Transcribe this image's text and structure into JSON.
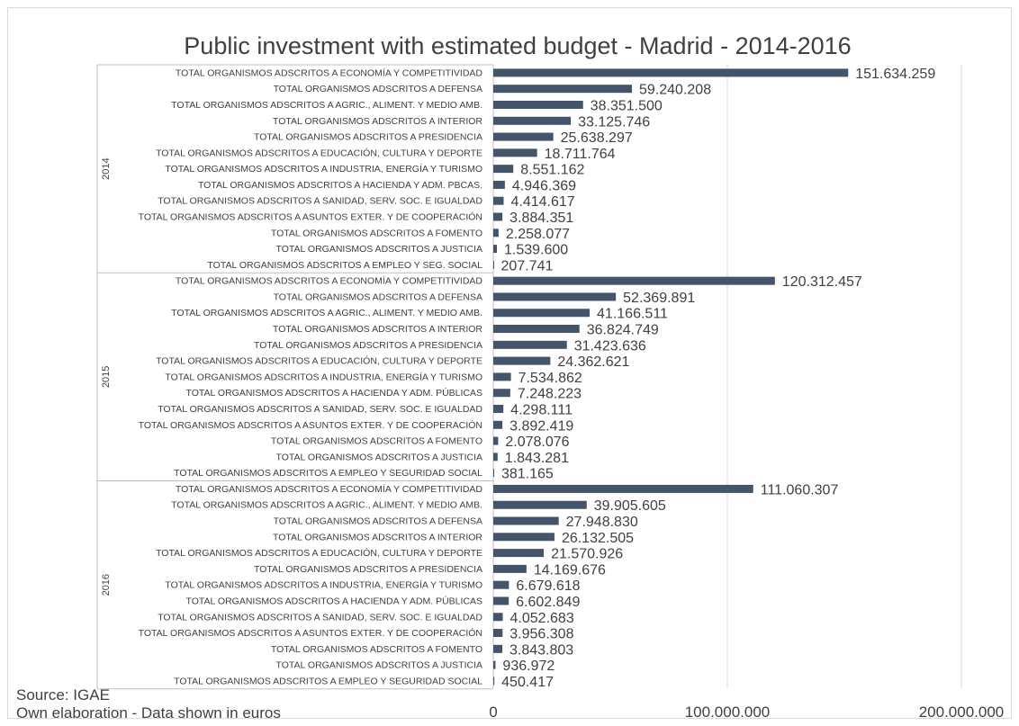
{
  "notes": {
    "source": "Source: IGAE",
    "elaboration": "Own elaboration - Data shown in euros"
  },
  "chart_data": {
    "type": "bar",
    "orientation": "horizontal",
    "title": "Public investment with estimated budget - Madrid - 2014-2016",
    "xlim": [
      0,
      200000000
    ],
    "x_ticks": [
      "0",
      "100.000.000",
      "200.000.000"
    ],
    "bar_color": "#44546a",
    "gridlines": true,
    "groups": [
      {
        "label": "2014",
        "items": [
          {
            "label": "TOTAL ORGANISMOS ADSCRITOS A ECONOMÍA Y COMPETITIVIDAD",
            "value": 151634259,
            "value_label": "151.634.259"
          },
          {
            "label": "TOTAL ORGANISMOS ADSCRITOS A DEFENSA",
            "value": 59240208,
            "value_label": "59.240.208"
          },
          {
            "label": "TOTAL ORGANISMOS ADSCRITOS A AGRIC., ALIMENT. Y MEDIO AMB.",
            "value": 38351500,
            "value_label": "38.351.500"
          },
          {
            "label": "TOTAL ORGANISMOS ADSCRITOS A INTERIOR",
            "value": 33125746,
            "value_label": "33.125.746"
          },
          {
            "label": "TOTAL ORGANISMOS ADSCRITOS A PRESIDENCIA",
            "value": 25638297,
            "value_label": "25.638.297"
          },
          {
            "label": "TOTAL ORGANISMOS ADSCRITOS A EDUCACIÓN, CULTURA Y DEPORTE",
            "value": 18711764,
            "value_label": "18.711.764"
          },
          {
            "label": "TOTAL ORGANISMOS ADSCRITOS A INDUSTRIA, ENERGÍA Y TURISMO",
            "value": 8551162,
            "value_label": "8.551.162"
          },
          {
            "label": "TOTAL ORGANISMOS ADSCRITOS A HACIENDA Y ADM. PBCAS.",
            "value": 4946369,
            "value_label": "4.946.369"
          },
          {
            "label": "TOTAL ORGANISMOS ADSCRITOS A SANIDAD, SERV. SOC. E IGUALDAD",
            "value": 4414617,
            "value_label": "4.414.617"
          },
          {
            "label": "TOTAL ORGANISMOS ADSCRITOS A ASUNTOS EXTER. Y DE COOPERACIÓN",
            "value": 3884351,
            "value_label": "3.884.351"
          },
          {
            "label": "TOTAL ORGANISMOS ADSCRITOS A FOMENTO",
            "value": 2258077,
            "value_label": "2.258.077"
          },
          {
            "label": "TOTAL ORGANISMOS ADSCRITOS A JUSTICIA",
            "value": 1539600,
            "value_label": "1.539.600"
          },
          {
            "label": "TOTAL ORGANISMOS ADSCRITOS A EMPLEO Y SEG. SOCIAL",
            "value": 207741,
            "value_label": "207.741"
          }
        ]
      },
      {
        "label": "2015",
        "items": [
          {
            "label": "TOTAL ORGANISMOS ADSCRITOS A ECONOMÍA Y COMPETITIVIDAD",
            "value": 120312457,
            "value_label": "120.312.457"
          },
          {
            "label": "TOTAL ORGANISMOS ADSCRITOS A DEFENSA",
            "value": 52369891,
            "value_label": "52.369.891"
          },
          {
            "label": "TOTAL ORGANISMOS ADSCRITOS A AGRIC., ALIMENT. Y MEDIO AMB.",
            "value": 41166511,
            "value_label": "41.166.511"
          },
          {
            "label": "TOTAL ORGANISMOS ADSCRITOS A INTERIOR",
            "value": 36824749,
            "value_label": "36.824.749"
          },
          {
            "label": "TOTAL ORGANISMOS ADSCRITOS A PRESIDENCIA",
            "value": 31423636,
            "value_label": "31.423.636"
          },
          {
            "label": "TOTAL ORGANISMOS ADSCRITOS A EDUCACIÓN, CULTURA Y DEPORTE",
            "value": 24362621,
            "value_label": "24.362.621"
          },
          {
            "label": "TOTAL ORGANISMOS ADSCRITOS A INDUSTRIA, ENERGÍA Y TURISMO",
            "value": 7534862,
            "value_label": "7.534.862"
          },
          {
            "label": "TOTAL ORGANISMOS ADSCRITOS A HACIENDA Y ADM. PÚBLICAS",
            "value": 7248223,
            "value_label": "7.248.223"
          },
          {
            "label": "TOTAL ORGANISMOS ADSCRITOS A SANIDAD, SERV. SOC. E IGUALDAD",
            "value": 4298111,
            "value_label": "4.298.111"
          },
          {
            "label": "TOTAL ORGANISMOS ADSCRITOS A ASUNTOS EXTER. Y DE COOPERACIÓN",
            "value": 3892419,
            "value_label": "3.892.419"
          },
          {
            "label": "TOTAL ORGANISMOS ADSCRITOS A FOMENTO",
            "value": 2078076,
            "value_label": "2.078.076"
          },
          {
            "label": "TOTAL ORGANISMOS ADSCRITOS A JUSTICIA",
            "value": 1843281,
            "value_label": "1.843.281"
          },
          {
            "label": "TOTAL ORGANISMOS ADSCRITOS A EMPLEO Y SEGURIDAD SOCIAL",
            "value": 381165,
            "value_label": "381.165"
          }
        ]
      },
      {
        "label": "2016",
        "items": [
          {
            "label": "TOTAL ORGANISMOS ADSCRITOS A ECONOMÍA Y COMPETITIVIDAD",
            "value": 111060307,
            "value_label": "111.060.307"
          },
          {
            "label": "TOTAL ORGANISMOS ADSCRITOS A AGRIC., ALIMENT. Y MEDIO AMB.",
            "value": 39905605,
            "value_label": "39.905.605"
          },
          {
            "label": "TOTAL ORGANISMOS ADSCRITOS A DEFENSA",
            "value": 27948830,
            "value_label": "27.948.830"
          },
          {
            "label": "TOTAL ORGANISMOS ADSCRITOS A INTERIOR",
            "value": 26132505,
            "value_label": "26.132.505"
          },
          {
            "label": "TOTAL ORGANISMOS ADSCRITOS A EDUCACIÓN, CULTURA Y DEPORTE",
            "value": 21570926,
            "value_label": "21.570.926"
          },
          {
            "label": "TOTAL ORGANISMOS ADSCRITOS A PRESIDENCIA",
            "value": 14169676,
            "value_label": "14.169.676"
          },
          {
            "label": "TOTAL ORGANISMOS ADSCRITOS A INDUSTRIA, ENERGÍA Y TURISMO",
            "value": 6679618,
            "value_label": "6.679.618"
          },
          {
            "label": "TOTAL ORGANISMOS ADSCRITOS A HACIENDA Y ADM. PÚBLICAS",
            "value": 6602849,
            "value_label": "6.602.849"
          },
          {
            "label": "TOTAL ORGANISMOS ADSCRITOS A SANIDAD, SERV. SOC. E IGUALDAD",
            "value": 4052683,
            "value_label": "4.052.683"
          },
          {
            "label": "TOTAL ORGANISMOS ADSCRITOS A ASUNTOS EXTER. Y DE COOPERACIÓN",
            "value": 3956308,
            "value_label": "3.956.308"
          },
          {
            "label": "TOTAL ORGANISMOS ADSCRITOS A FOMENTO",
            "value": 3843803,
            "value_label": "3.843.803"
          },
          {
            "label": "TOTAL ORGANISMOS ADSCRITOS A JUSTICIA",
            "value": 936972,
            "value_label": "936.972"
          },
          {
            "label": "TOTAL ORGANISMOS ADSCRITOS A EMPLEO Y SEGURIDAD SOCIAL",
            "value": 450417,
            "value_label": "450.417"
          }
        ]
      }
    ]
  }
}
